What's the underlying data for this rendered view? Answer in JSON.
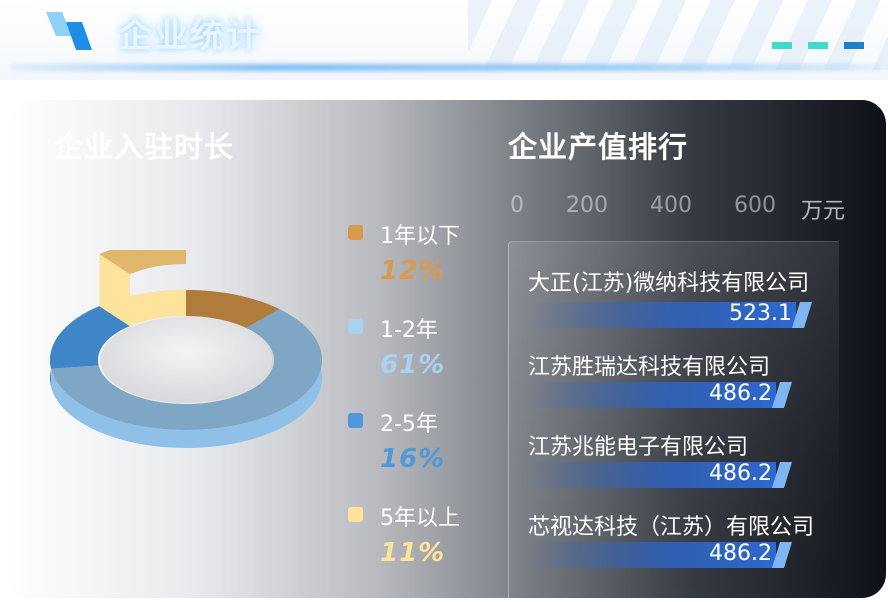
{
  "header": {
    "title": "企业统计",
    "dash_colors": [
      "#43d8c8",
      "#43d8c8",
      "#1f7fc8"
    ]
  },
  "duration": {
    "title": "企业入驻时长",
    "segments": [
      {
        "label": "1年以下",
        "percent": "12%",
        "value": 12,
        "color": "#d89a4e"
      },
      {
        "label": "1-2年",
        "percent": "61%",
        "value": 61,
        "color": "#a9d2f2"
      },
      {
        "label": "2-5年",
        "percent": "16%",
        "value": 16,
        "color": "#4f98d9"
      },
      {
        "label": "5年以上",
        "percent": "11%",
        "value": 11,
        "color": "#fde39c"
      }
    ]
  },
  "ranking": {
    "title": "企业产值排行",
    "axis_ticks": [
      "0",
      "200",
      "400",
      "600"
    ],
    "unit": "万元",
    "axis_max": 700,
    "items": [
      {
        "name": "大正(江苏)微纳科技有限公司",
        "value": 523.1,
        "value_label": "523.1"
      },
      {
        "name": "江苏胜瑞达科技有限公司",
        "value": 486.2,
        "value_label": "486.2"
      },
      {
        "name": "江苏兆能电子有限公司",
        "value": 486.2,
        "value_label": "486.2"
      },
      {
        "name": "芯视达科技（江苏）有限公司",
        "value": 486.2,
        "value_label": "486.2"
      }
    ]
  }
}
